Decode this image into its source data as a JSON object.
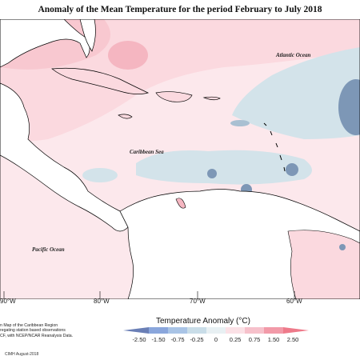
{
  "title": "Anomaly of the Mean Temperature for the period February to July 2018",
  "map": {
    "labels": {
      "atlantic": "Atlantic Ocean",
      "caribbean": "Caribbean Sea",
      "pacific": "Pacific Ocean"
    },
    "longitudes": [
      "90°W",
      "80°W",
      "70°W",
      "60°W"
    ],
    "colors": {
      "land": "#ffffff",
      "coast": "#000000"
    }
  },
  "legend": {
    "title": "Temperature Anomaly (°C)",
    "ticks": [
      "-2.50",
      "-1.50",
      "-0.75",
      "-0.25",
      "0",
      "0.25",
      "0.75",
      "1.50",
      "2.50"
    ],
    "colors": [
      "#6a7fb6",
      "#8aa6dc",
      "#a9c4e6",
      "#c9dde8",
      "#e8f0f3",
      "#fbe1e6",
      "#f6c1cb",
      "#f29aa8",
      "#ee7a8a"
    ]
  },
  "credit": {
    "line1": "n Map of the Caribbean Region",
    "line2": "regating station based observations",
    "line3": "CF, with NCEP/NCAR Reanalysis Data."
  },
  "footer": "CIMH August-2018"
}
